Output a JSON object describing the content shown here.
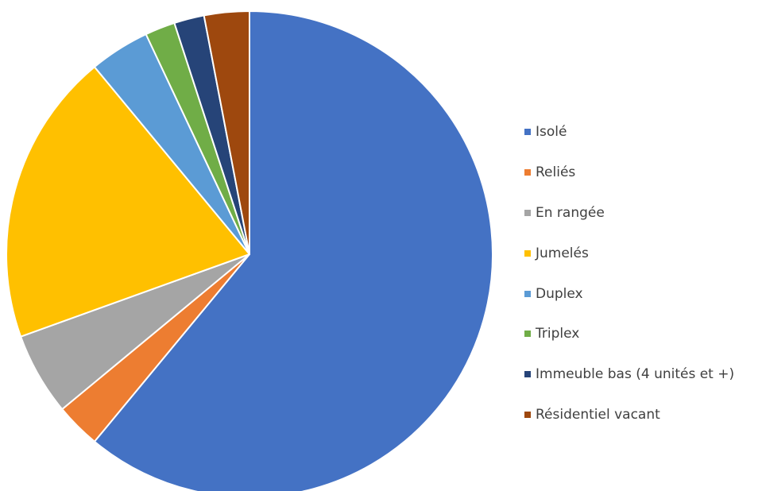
{
  "chart_data": {
    "type": "pie",
    "title": "",
    "categories": [
      "Isolé",
      "Reliés",
      "En rangée",
      "Jumelés",
      "Duplex",
      "Triplex",
      "Immeuble bas (4 unités et +)",
      "Résidentiel vacant"
    ],
    "values": [
      61.0,
      3.0,
      5.5,
      19.5,
      4.0,
      2.0,
      2.0,
      3.0
    ],
    "value_unit": "%",
    "colors": [
      "#4472C4",
      "#ED7D31",
      "#A5A5A5",
      "#FFC000",
      "#5B9BD5",
      "#70AD47",
      "#264478",
      "#9E480E"
    ],
    "legend_position": "right",
    "start_angle": "12 o'clock",
    "direction": "clockwise"
  }
}
